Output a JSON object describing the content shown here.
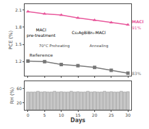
{
  "chart_data": [
    {
      "type": "line",
      "x": [
        0,
        5,
        10,
        15,
        20,
        25,
        30
      ],
      "series": [
        {
          "name": "MACl",
          "color": "#e8559a",
          "marker": "triangle",
          "values": [
            2.07,
            2.03,
            2.01,
            1.96,
            1.92,
            1.88,
            1.84
          ]
        },
        {
          "name": "Reference",
          "color": "#777777",
          "marker": "square",
          "values": [
            1.21,
            1.2,
            1.15,
            1.13,
            1.1,
            1.05,
            1.0
          ]
        }
      ],
      "ylabel": "PCE (%)",
      "xlim": [
        -1,
        31
      ],
      "xticks": [
        0,
        5,
        10,
        15,
        20,
        25,
        30
      ],
      "ylim": [
        0.95,
        2.2
      ],
      "yticks": [
        1.2,
        1.5,
        1.8,
        2.1
      ],
      "tick_labels": "y",
      "grid": false,
      "annotations": [
        {
          "text": "91%",
          "color": "#e8559a"
        },
        {
          "text": "83%",
          "color": "#777777"
        },
        {
          "text": "MACl\npre-treatment",
          "color": "#000000"
        },
        {
          "text": "Cs₂AgBiBr₆-MACl",
          "color": "#000000"
        },
        {
          "text": "70°C Preheating",
          "color": "#444444"
        },
        {
          "text": "Annealing",
          "color": "#444444"
        }
      ]
    },
    {
      "type": "bar",
      "x": [
        0,
        1,
        2,
        3,
        4,
        5,
        6,
        7,
        8,
        9,
        10,
        11,
        12,
        13,
        14,
        15,
        16,
        17,
        18,
        19,
        20,
        21,
        22,
        23,
        24,
        25,
        26,
        27,
        28,
        29,
        30
      ],
      "values": [
        50,
        50,
        50,
        52,
        50,
        51,
        50,
        50,
        52,
        50,
        51,
        50,
        50,
        52,
        50,
        51,
        50,
        50,
        52,
        50,
        51,
        50,
        50,
        52,
        50,
        51,
        50,
        50,
        52,
        50,
        51
      ],
      "color": "#c8c8c8",
      "ylabel": "RH (%)",
      "xlabel": "Days",
      "xlim": [
        -1,
        31
      ],
      "xticks": [
        0,
        5,
        10,
        15,
        20,
        25,
        30
      ],
      "ylim": [
        0,
        80
      ],
      "yticks": [
        20,
        60
      ],
      "grid": false
    }
  ]
}
